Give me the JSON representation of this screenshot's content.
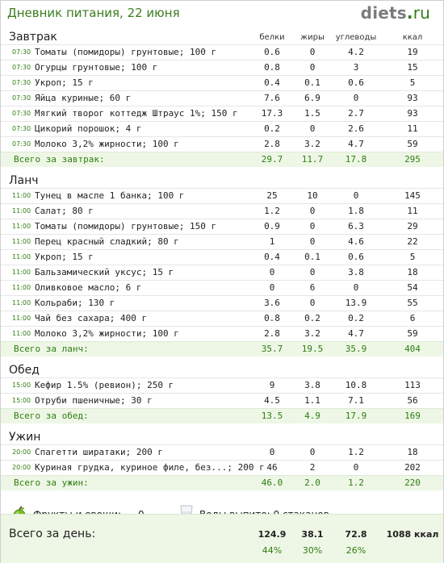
{
  "header": {
    "title": "Дневник питания, 22 июня",
    "logo_name": "diets",
    "logo_dot": ".",
    "logo_tld": "ru"
  },
  "columns": {
    "protein": "белки",
    "fat": "жиры",
    "carbs": "углеводы",
    "kcal": "ккал"
  },
  "sections": [
    {
      "name": "Завтрак",
      "rows": [
        {
          "time": "07:30",
          "name": "Томаты (помидоры) грунтовые; 100 г",
          "p": "0.6",
          "f": "0",
          "c": "4.2",
          "k": "19"
        },
        {
          "time": "07:30",
          "name": "Огурцы грунтовые; 100 г",
          "p": "0.8",
          "f": "0",
          "c": "3",
          "k": "15"
        },
        {
          "time": "07:30",
          "name": "Укроп; 15 г",
          "p": "0.4",
          "f": "0.1",
          "c": "0.6",
          "k": "5"
        },
        {
          "time": "07:30",
          "name": "Яйца куриные; 60 г",
          "p": "7.6",
          "f": "6.9",
          "c": "0",
          "k": "93"
        },
        {
          "time": "07:30",
          "name": "Мягкий творог коттедж Штраус 1%; 150 г",
          "p": "17.3",
          "f": "1.5",
          "c": "2.7",
          "k": "93"
        },
        {
          "time": "07:30",
          "name": "Цикорий порошок; 4 г",
          "p": "0.2",
          "f": "0",
          "c": "2.6",
          "k": "11"
        },
        {
          "time": "07:30",
          "name": "Молоко 3,2% жирности; 100 г",
          "p": "2.8",
          "f": "3.2",
          "c": "4.7",
          "k": "59"
        }
      ],
      "total": {
        "label": "Всего за завтрак:",
        "p": "29.7",
        "f": "11.7",
        "c": "17.8",
        "k": "295"
      }
    },
    {
      "name": "Ланч",
      "rows": [
        {
          "time": "11:00",
          "name": "Тунец в масле 1 банка; 100 г",
          "p": "25",
          "f": "10",
          "c": "0",
          "k": "145"
        },
        {
          "time": "11:00",
          "name": "Салат; 80 г",
          "p": "1.2",
          "f": "0",
          "c": "1.8",
          "k": "11"
        },
        {
          "time": "11:00",
          "name": "Томаты (помидоры) грунтовые; 150 г",
          "p": "0.9",
          "f": "0",
          "c": "6.3",
          "k": "29"
        },
        {
          "time": "11:00",
          "name": "Перец красный сладкий; 80 г",
          "p": "1",
          "f": "0",
          "c": "4.6",
          "k": "22"
        },
        {
          "time": "11:00",
          "name": "Укроп; 15 г",
          "p": "0.4",
          "f": "0.1",
          "c": "0.6",
          "k": "5"
        },
        {
          "time": "11:00",
          "name": "Бальзамический уксус; 15 г",
          "p": "0",
          "f": "0",
          "c": "3.8",
          "k": "18"
        },
        {
          "time": "11:00",
          "name": "Оливковое масло; 6 г",
          "p": "0",
          "f": "6",
          "c": "0",
          "k": "54"
        },
        {
          "time": "11:00",
          "name": "Кольраби; 130 г",
          "p": "3.6",
          "f": "0",
          "c": "13.9",
          "k": "55"
        },
        {
          "time": "11:00",
          "name": "Чай без сахара; 400 г",
          "p": "0.8",
          "f": "0.2",
          "c": "0.2",
          "k": "6"
        },
        {
          "time": "11:00",
          "name": "Молоко 3,2% жирности; 100 г",
          "p": "2.8",
          "f": "3.2",
          "c": "4.7",
          "k": "59"
        }
      ],
      "total": {
        "label": "Всего за ланч:",
        "p": "35.7",
        "f": "19.5",
        "c": "35.9",
        "k": "404"
      }
    },
    {
      "name": "Обед",
      "rows": [
        {
          "time": "15:00",
          "name": "Кефир 1.5% (ревион); 250 г",
          "p": "9",
          "f": "3.8",
          "c": "10.8",
          "k": "113"
        },
        {
          "time": "15:00",
          "name": "Отруби пшеничные; 30 г",
          "p": "4.5",
          "f": "1.1",
          "c": "7.1",
          "k": "56"
        }
      ],
      "total": {
        "label": "Всего за обед:",
        "p": "13.5",
        "f": "4.9",
        "c": "17.9",
        "k": "169"
      }
    },
    {
      "name": "Ужин",
      "rows": [
        {
          "time": "20:00",
          "name": "Спагетти ширатаки; 200 г",
          "p": "0",
          "f": "0",
          "c": "1.2",
          "k": "18"
        },
        {
          "time": "20:00",
          "name": "Куриная грудка, куриное филе, без...; 200 г",
          "p": "46",
          "f": "2",
          "c": "0",
          "k": "202"
        }
      ],
      "total": {
        "label": "Всего за ужин:",
        "p": "46.0",
        "f": "2.0",
        "c": "1.2",
        "k": "220"
      }
    }
  ],
  "extras": {
    "fruits_label": "Фрукты и овощи:",
    "fruits_value": "0",
    "water_label": "Воды выпито: 0 стаканов"
  },
  "day_total": {
    "label": "Всего за день:",
    "p": "124.9",
    "f": "38.1",
    "c": "72.8",
    "k": "1088 ккал",
    "p_pct": "44%",
    "f_pct": "30%",
    "c_pct": "26%"
  },
  "colors": {
    "accent_green": "#2f7d11",
    "total_bg": "#eef7e6"
  }
}
